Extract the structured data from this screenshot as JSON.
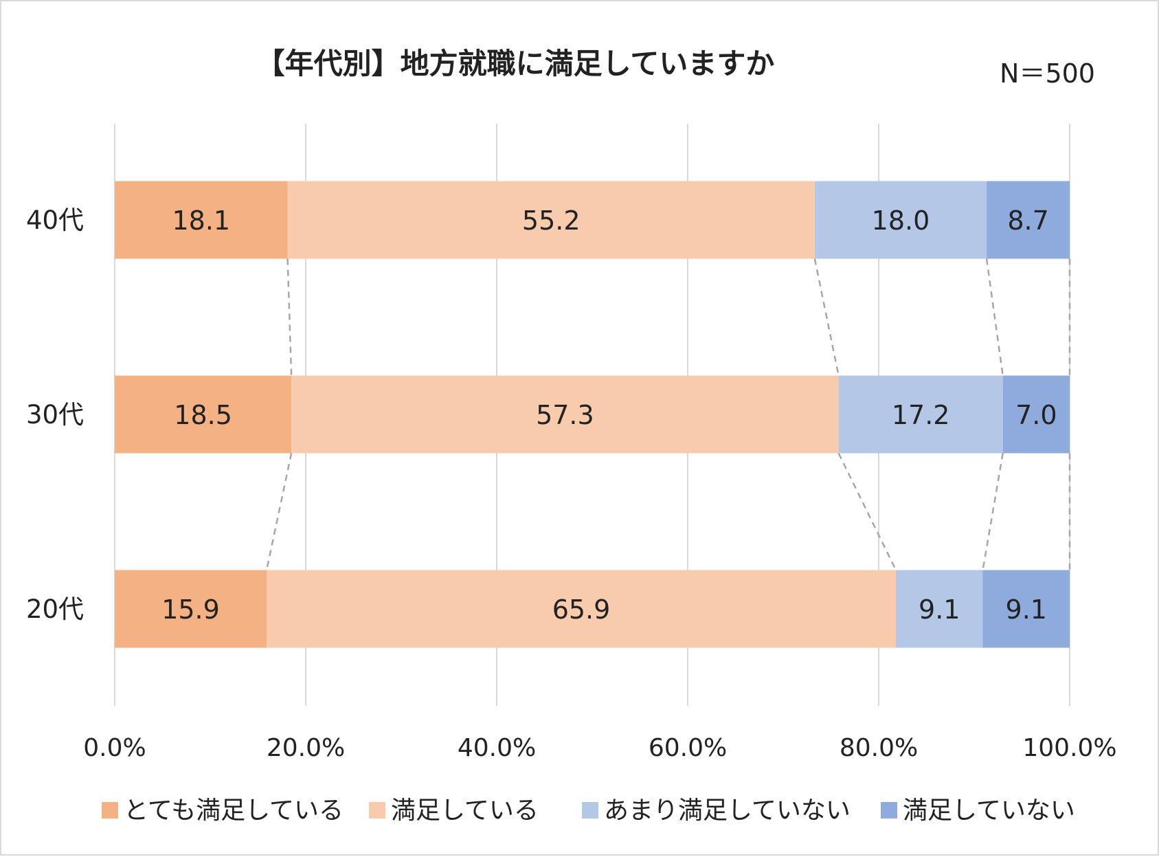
{
  "chart_data": {
    "type": "bar",
    "orientation": "horizontal",
    "stacked": "percent",
    "title": "【年代別】地方就職に満足していますか",
    "note": "N＝500",
    "categories": [
      "40代",
      "30代",
      "20代"
    ],
    "series": [
      {
        "name": "とても満足している",
        "color": "#f4b183",
        "values": [
          18.1,
          18.5,
          15.9
        ]
      },
      {
        "name": "満足している",
        "color": "#f8cbad",
        "values": [
          55.2,
          57.3,
          65.9
        ]
      },
      {
        "name": "あまり満足していない",
        "color": "#b4c7e7",
        "values": [
          18.0,
          17.2,
          9.1
        ]
      },
      {
        "name": "満足していない",
        "color": "#8faadc",
        "values": [
          8.7,
          7.0,
          9.1
        ]
      }
    ],
    "value_labels": [
      [
        "18.1",
        "18.5",
        "15.9"
      ],
      [
        "55.2",
        "57.3",
        "65.9"
      ],
      [
        "18.0",
        "17.2",
        "9.1"
      ],
      [
        "8.7",
        "7.0",
        "9.1"
      ]
    ],
    "xlim": [
      0,
      100
    ],
    "xticks": [
      "0.0%",
      "20.0%",
      "40.0%",
      "60.0%",
      "80.0%",
      "100.0%"
    ],
    "xlabel": "",
    "ylabel": "",
    "grid": true,
    "series_lines": true,
    "legend": "bottom"
  }
}
